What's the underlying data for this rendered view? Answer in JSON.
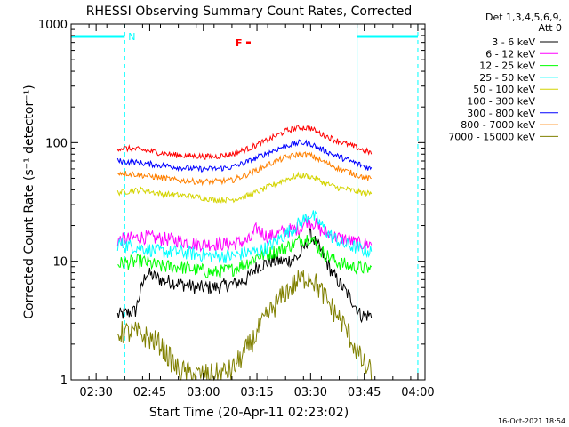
{
  "chart_data": {
    "type": "line",
    "title": "RHESSI Observing Summary Count Rates, Corrected",
    "xlabel": "Start Time (20-Apr-11 02:23:02)",
    "ylabel": "Corrected Count Rate (s⁻¹ detector⁻¹)",
    "y_scale": "log",
    "ylim": [
      1,
      1000
    ],
    "y_ticks": [
      "1",
      "10",
      "100",
      "1000"
    ],
    "xlim_minutes": [
      0,
      99
    ],
    "x_ticks": [
      {
        "label": "02:30",
        "t": 7
      },
      {
        "label": "02:45",
        "t": 22
      },
      {
        "label": "03:00",
        "t": 37
      },
      {
        "label": "03:15",
        "t": 52
      },
      {
        "label": "03:30",
        "t": 67
      },
      {
        "label": "03:45",
        "t": 82
      },
      {
        "label": "04:00",
        "t": 97
      }
    ],
    "grid": false,
    "legend_placement": "top-right",
    "legend_header": [
      "Det 1,3,4,5,6,9,",
      "Att 0"
    ],
    "data_span_minutes": [
      13,
      84
    ],
    "series": [
      {
        "name": "3 - 6 keV",
        "color": "#000000",
        "values": [
          [
            13,
            3.5
          ],
          [
            18,
            3.8
          ],
          [
            19,
            5
          ],
          [
            21,
            8
          ],
          [
            25,
            7
          ],
          [
            30,
            6.5
          ],
          [
            35,
            6
          ],
          [
            40,
            6
          ],
          [
            46,
            6.5
          ],
          [
            49,
            7
          ],
          [
            52,
            9
          ],
          [
            56,
            10
          ],
          [
            60,
            10
          ],
          [
            64,
            11
          ],
          [
            67,
            17
          ],
          [
            70,
            12
          ],
          [
            73,
            8
          ],
          [
            76,
            6
          ],
          [
            79,
            4.5
          ],
          [
            81,
            3.5
          ],
          [
            83,
            3.5
          ],
          [
            84,
            3.5
          ]
        ]
      },
      {
        "name": "6 - 12 keV",
        "color": "#ff00ff",
        "values": [
          [
            13,
            15
          ],
          [
            20,
            16
          ],
          [
            25,
            15.5
          ],
          [
            30,
            15
          ],
          [
            35,
            14
          ],
          [
            40,
            14
          ],
          [
            45,
            14
          ],
          [
            50,
            15
          ],
          [
            52,
            19
          ],
          [
            55,
            16
          ],
          [
            60,
            18
          ],
          [
            64,
            19
          ],
          [
            66,
            22
          ],
          [
            68,
            21
          ],
          [
            70,
            18
          ],
          [
            74,
            16
          ],
          [
            78,
            15
          ],
          [
            80,
            14
          ],
          [
            84,
            14
          ]
        ]
      },
      {
        "name": "12 - 25 keV",
        "color": "#00ff00",
        "values": [
          [
            13,
            9.5
          ],
          [
            20,
            10
          ],
          [
            25,
            9
          ],
          [
            30,
            9
          ],
          [
            35,
            8.5
          ],
          [
            40,
            8
          ],
          [
            45,
            8.5
          ],
          [
            50,
            10
          ],
          [
            52,
            11
          ],
          [
            55,
            11.5
          ],
          [
            60,
            13
          ],
          [
            64,
            15
          ],
          [
            67,
            16
          ],
          [
            70,
            12
          ],
          [
            74,
            10
          ],
          [
            78,
            9
          ],
          [
            80,
            9
          ],
          [
            84,
            8.5
          ]
        ]
      },
      {
        "name": "25 - 50 keV",
        "color": "#00ffff",
        "values": [
          [
            13,
            14
          ],
          [
            20,
            13
          ],
          [
            25,
            12
          ],
          [
            30,
            12
          ],
          [
            35,
            11.5
          ],
          [
            40,
            11
          ],
          [
            45,
            11
          ],
          [
            50,
            12
          ],
          [
            52,
            12
          ],
          [
            55,
            13
          ],
          [
            60,
            17
          ],
          [
            64,
            21
          ],
          [
            67,
            25
          ],
          [
            69,
            22
          ],
          [
            72,
            17
          ],
          [
            76,
            14
          ],
          [
            80,
            13
          ],
          [
            84,
            12
          ]
        ]
      },
      {
        "name": "50 - 100 keV",
        "color": "#d4d400",
        "values": [
          [
            13,
            38
          ],
          [
            20,
            40
          ],
          [
            25,
            37
          ],
          [
            30,
            36
          ],
          [
            35,
            35
          ],
          [
            40,
            33
          ],
          [
            45,
            33
          ],
          [
            50,
            36
          ],
          [
            55,
            42
          ],
          [
            60,
            49
          ],
          [
            64,
            53
          ],
          [
            67,
            52
          ],
          [
            70,
            47
          ],
          [
            74,
            42
          ],
          [
            78,
            40
          ],
          [
            81,
            38
          ],
          [
            84,
            37
          ]
        ]
      },
      {
        "name": "100 - 300 keV",
        "color": "#ff0000",
        "values": [
          [
            13,
            90
          ],
          [
            18,
            88
          ],
          [
            22,
            85
          ],
          [
            26,
            81
          ],
          [
            30,
            78
          ],
          [
            35,
            77
          ],
          [
            40,
            76
          ],
          [
            45,
            80
          ],
          [
            50,
            90
          ],
          [
            55,
            105
          ],
          [
            60,
            125
          ],
          [
            64,
            135
          ],
          [
            67,
            132
          ],
          [
            70,
            118
          ],
          [
            74,
            105
          ],
          [
            78,
            95
          ],
          [
            81,
            88
          ],
          [
            84,
            82
          ]
        ]
      },
      {
        "name": "300 - 800 keV",
        "color": "#0000ff",
        "values": [
          [
            13,
            70
          ],
          [
            18,
            68
          ],
          [
            22,
            66
          ],
          [
            26,
            64
          ],
          [
            30,
            62
          ],
          [
            35,
            60
          ],
          [
            40,
            60
          ],
          [
            45,
            62
          ],
          [
            50,
            70
          ],
          [
            55,
            82
          ],
          [
            60,
            94
          ],
          [
            64,
            100
          ],
          [
            67,
            98
          ],
          [
            70,
            88
          ],
          [
            74,
            78
          ],
          [
            78,
            70
          ],
          [
            81,
            65
          ],
          [
            84,
            60
          ]
        ]
      },
      {
        "name": "800 - 7000 keV",
        "color": "#ff8000",
        "values": [
          [
            13,
            56
          ],
          [
            18,
            54
          ],
          [
            22,
            52
          ],
          [
            26,
            50
          ],
          [
            30,
            48
          ],
          [
            35,
            47
          ],
          [
            40,
            47
          ],
          [
            45,
            48
          ],
          [
            50,
            55
          ],
          [
            55,
            65
          ],
          [
            60,
            75
          ],
          [
            64,
            80
          ],
          [
            67,
            78
          ],
          [
            70,
            70
          ],
          [
            74,
            62
          ],
          [
            78,
            56
          ],
          [
            81,
            52
          ],
          [
            84,
            49
          ]
        ]
      },
      {
        "name": "7000 - 15000 keV",
        "color": "#808000",
        "values": [
          [
            13,
            2.5
          ],
          [
            18,
            2.5
          ],
          [
            21,
            2.3
          ],
          [
            25,
            2
          ],
          [
            27,
            1.6
          ],
          [
            30,
            1.2
          ],
          [
            35,
            1.1
          ],
          [
            40,
            1.1
          ],
          [
            45,
            1.2
          ],
          [
            48,
            1.6
          ],
          [
            51,
            2.2
          ],
          [
            55,
            3.5
          ],
          [
            60,
            5.5
          ],
          [
            64,
            7
          ],
          [
            67,
            7.5
          ],
          [
            70,
            5.5
          ],
          [
            73,
            4
          ],
          [
            76,
            3
          ],
          [
            79,
            2
          ],
          [
            81,
            1.5
          ],
          [
            83,
            1.2
          ],
          [
            84,
            1.2
          ]
        ]
      }
    ],
    "annotations": [
      {
        "text": "N",
        "kind": "night",
        "color": "#00ffff",
        "segments": [
          [
            0,
            15
          ],
          [
            80,
            97
          ]
        ],
        "markers": [
          0,
          15,
          80,
          97
        ]
      },
      {
        "text": "F",
        "kind": "flare",
        "color": "#ff0000",
        "segments": [
          [
            48,
            49
          ]
        ]
      }
    ]
  },
  "timestamp": "16-Oct-2021 18:54"
}
